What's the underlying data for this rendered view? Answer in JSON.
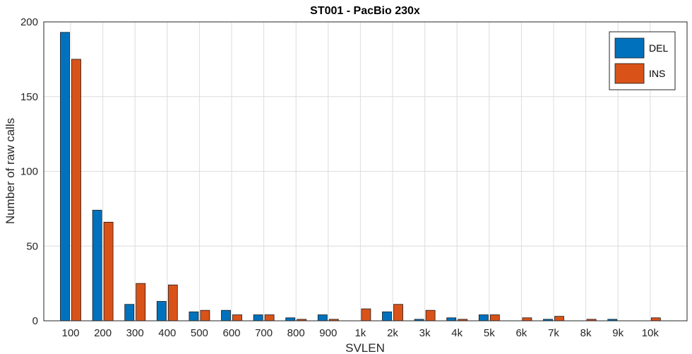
{
  "chart_data": {
    "type": "bar",
    "title": "ST001 - PacBio 230x",
    "xlabel": "SVLEN",
    "ylabel": "Number of raw calls",
    "ylim": [
      0,
      200
    ],
    "yticks": [
      0,
      50,
      100,
      150,
      200
    ],
    "categories": [
      "100",
      "200",
      "300",
      "400",
      "500",
      "600",
      "700",
      "800",
      "900",
      "1k",
      "2k",
      "3k",
      "4k",
      "5k",
      "6k",
      "7k",
      "8k",
      "9k",
      "10k"
    ],
    "series": [
      {
        "name": "DEL",
        "color": "#0072BD",
        "values": [
          193,
          74,
          11,
          13,
          6,
          7,
          4,
          2,
          4,
          0,
          6,
          1,
          2,
          4,
          0,
          1,
          0,
          1,
          0
        ]
      },
      {
        "name": "INS",
        "color": "#D95319",
        "values": [
          175,
          66,
          25,
          24,
          7,
          4,
          4,
          1,
          1,
          8,
          11,
          7,
          1,
          4,
          2,
          3,
          1,
          0,
          2
        ]
      }
    ],
    "grid": true,
    "legend_position": "top-right"
  }
}
